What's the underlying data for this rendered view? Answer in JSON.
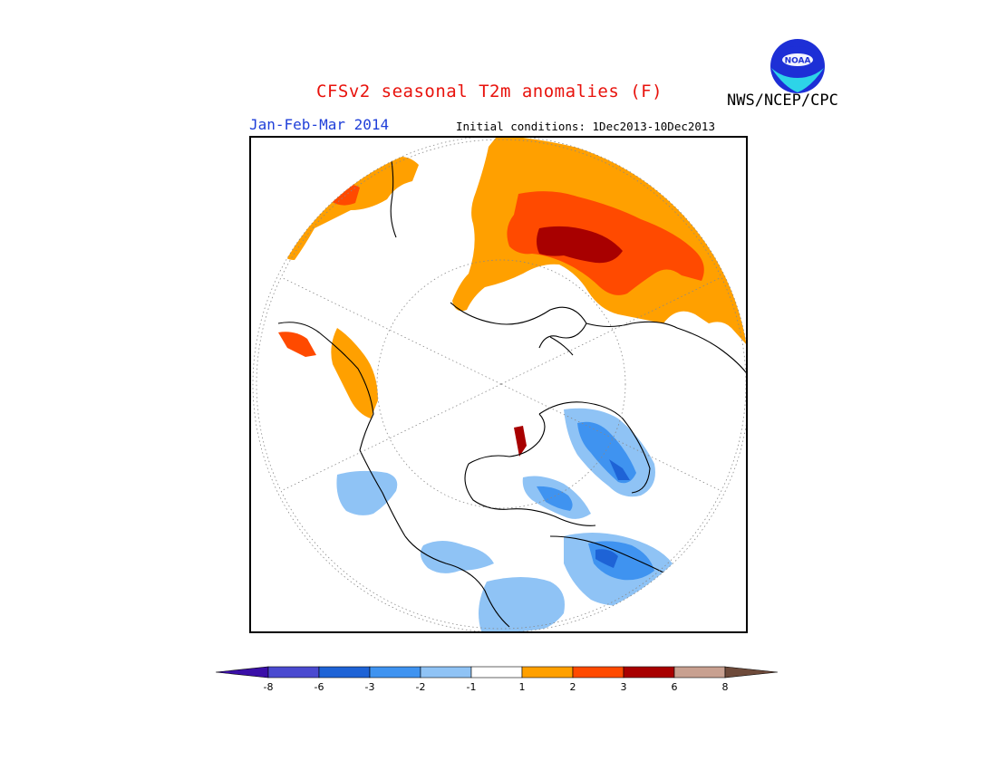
{
  "header": {
    "title": "CFSv2 seasonal T2m anomalies (F)",
    "agency": "NWS/NCEP/CPC",
    "period": "Jan-Feb-Mar 2014",
    "initial_conditions": "Initial conditions: 1Dec2013-10Dec2013",
    "logo_text": "NOAA"
  },
  "map": {
    "projection": "north polar stereographic",
    "variable": "2m temperature anomaly",
    "units": "F"
  },
  "colorbar": {
    "labels": [
      "-8",
      "-6",
      "-3",
      "-2",
      "-1",
      "1",
      "2",
      "3",
      "6",
      "8"
    ],
    "bins": [
      {
        "range": "< -8",
        "color": "#3a0fa8"
      },
      {
        "range": "-8 to -6",
        "color": "#4a4ad0"
      },
      {
        "range": "-6 to -3",
        "color": "#1e63d6"
      },
      {
        "range": "-3 to -2",
        "color": "#3f93f0"
      },
      {
        "range": "-2 to -1",
        "color": "#8fc3f5"
      },
      {
        "range": "-1 to 1",
        "color": "#ffffff"
      },
      {
        "range": "1 to 2",
        "color": "#ffa000"
      },
      {
        "range": "2 to 3",
        "color": "#ff4a00"
      },
      {
        "range": "3 to 6",
        "color": "#a80000"
      },
      {
        "range": "6 to 8",
        "color": "#c8a090"
      },
      {
        "range": "> 8",
        "color": "#6e4a3a"
      }
    ]
  }
}
